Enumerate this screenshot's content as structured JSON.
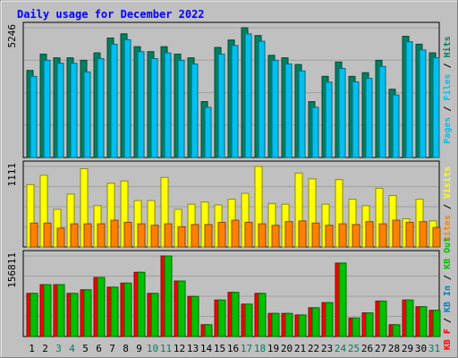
{
  "chart_data": {
    "type": "bar",
    "title": "Daily usage for December 2022",
    "days": [
      "1",
      "2",
      "3",
      "4",
      "5",
      "6",
      "7",
      "8",
      "9",
      "10",
      "11",
      "12",
      "13",
      "14",
      "15",
      "16",
      "17",
      "18",
      "19",
      "20",
      "21",
      "22",
      "23",
      "24",
      "25",
      "26",
      "27",
      "28",
      "29",
      "30",
      "31"
    ],
    "weekend_days": [
      "3",
      "4",
      "10",
      "11",
      "17",
      "18",
      "24",
      "25",
      "31"
    ],
    "panels": [
      {
        "name": "hits-files-pages",
        "ymax_label": "5246",
        "ymax": 5246,
        "axis_labels": [
          "Pages",
          "Files",
          "Hits"
        ],
        "series": [
          {
            "name": "Hits",
            "color": "#008060",
            "values": [
              3520,
              4180,
              4030,
              4030,
              3930,
              4230,
              4830,
              5000,
              4480,
              4280,
              4480,
              4180,
              4030,
              2260,
              4450,
              4750,
              5246,
              4930,
              4130,
              4030,
              3760,
              2260,
              3280,
              3860,
              3280,
              3430,
              3930,
              2760,
              4900,
              4580,
              4230
            ]
          },
          {
            "name": "Files",
            "color": "#00c0f0",
            "values": [
              3280,
              3930,
              3810,
              3810,
              3460,
              4000,
              4580,
              4760,
              4280,
              4000,
              4230,
              3930,
              3780,
              2030,
              4180,
              4530,
              5000,
              4700,
              3930,
              3780,
              3500,
              2030,
              3050,
              3600,
              3060,
              3200,
              3680,
              2530,
              4680,
              4350,
              4030
            ]
          },
          {
            "name": "Pages",
            "color": "#00c0f0"
          }
        ]
      },
      {
        "name": "visits-sites",
        "ymax_label": "1111",
        "ymax": 1111,
        "axis_labels": [
          "Sites",
          "Visits"
        ],
        "series": [
          {
            "name": "Visits",
            "color": "#ffff00",
            "values": [
              860,
              990,
              520,
              730,
              1080,
              570,
              880,
              910,
              640,
              640,
              960,
              520,
              590,
              620,
              580,
              660,
              740,
              1111,
              600,
              590,
              1020,
              940,
              590,
              930,
              660,
              570,
              810,
              710,
              390,
              660,
              360
            ]
          },
          {
            "name": "Sites",
            "color": "#ff8000",
            "values": [
              330,
              330,
              260,
              320,
              320,
              320,
              370,
              340,
              320,
              300,
              320,
              280,
              310,
              310,
              340,
              370,
              340,
              320,
              300,
              350,
              360,
              330,
              300,
              320,
              310,
              350,
              320,
              370,
              340,
              350,
              270
            ]
          }
        ]
      },
      {
        "name": "traffic",
        "ymax_label": "156811",
        "ymax": 156811,
        "axis_labels": [
          "KB F",
          "KB In",
          "KB Out"
        ],
        "series": [
          {
            "name": "KB F",
            "color": "#ff0000",
            "values": [
              84000,
              101000,
              101000,
              84000,
              91000,
              115000,
              96000,
              104000,
              125000,
              84000,
              156811,
              108000,
              78000,
              23000,
              71000,
              86000,
              63000,
              84000,
              45000,
              45000,
              42000,
              56000,
              66000,
              143000,
              36000,
              46000,
              69000,
              23000,
              71000,
              58000,
              51000
            ]
          },
          {
            "name": "KB Out",
            "color": "#00c000",
            "values": [
              84000,
              101000,
              101000,
              84000,
              91000,
              115000,
              96000,
              104000,
              125000,
              84000,
              156811,
              108000,
              78000,
              23000,
              71000,
              86000,
              63000,
              84000,
              45000,
              45000,
              42000,
              56000,
              66000,
              143000,
              36000,
              46000,
              69000,
              23000,
              71000,
              58000,
              51000
            ]
          },
          {
            "name": "KB In",
            "color": "#0080c0"
          }
        ]
      }
    ]
  }
}
